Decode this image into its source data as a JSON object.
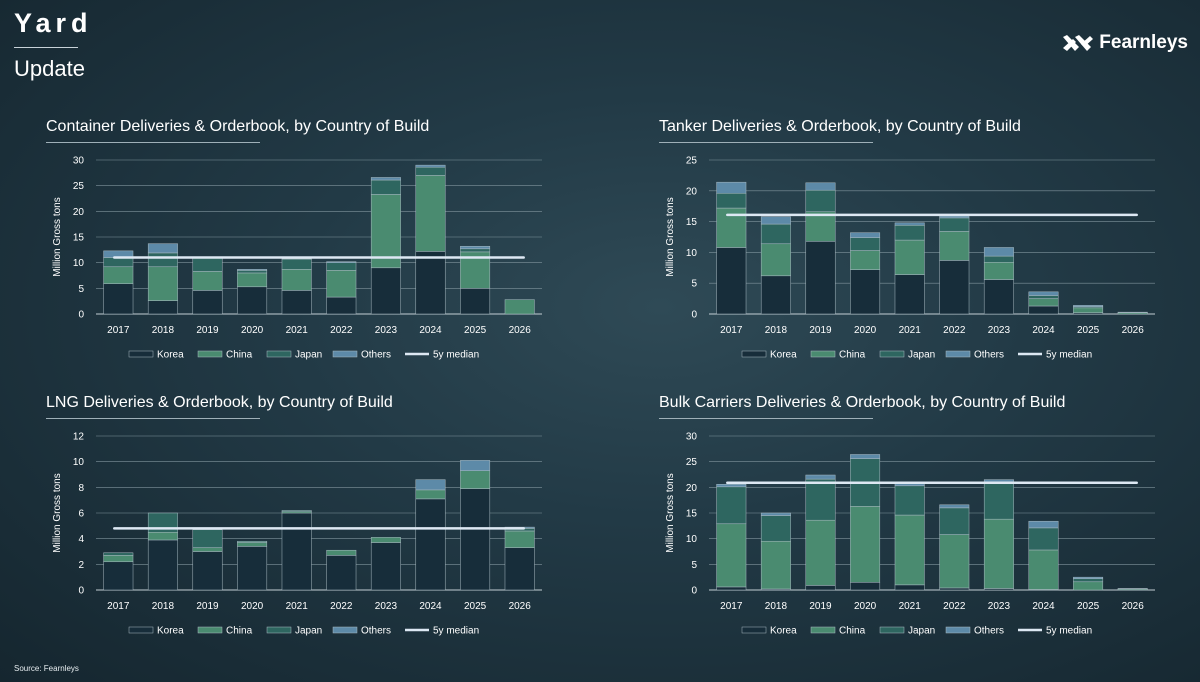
{
  "header": {
    "brand": "Yard",
    "subtitle": "Update",
    "logo_text": "Fearnleys"
  },
  "footer": {
    "source": "Source: Fearnleys"
  },
  "colors": {
    "Korea": "#172d3a",
    "China": "#4a8b70",
    "Japan": "#2e6660",
    "Others": "#5d8aa8",
    "median": "#dde8f3"
  },
  "legend": [
    "Korea",
    "China",
    "Japan",
    "Others",
    "5y median"
  ],
  "chart_data": [
    {
      "id": "container",
      "type": "bar",
      "stacked": true,
      "title": "Container Deliveries & Orderbook, by Country of Build",
      "ylabel": "Million Gross tons",
      "ylim": [
        0,
        30
      ],
      "yticks": [
        0,
        5,
        10,
        15,
        20,
        25,
        30
      ],
      "categories": [
        "2017",
        "2018",
        "2019",
        "2020",
        "2021",
        "2022",
        "2023",
        "2024",
        "2025",
        "2026"
      ],
      "series": [
        {
          "name": "Korea",
          "values": [
            5.9,
            2.6,
            4.6,
            5.3,
            4.6,
            3.3,
            9.0,
            12.2,
            5.0,
            0.0
          ]
        },
        {
          "name": "China",
          "values": [
            3.3,
            6.6,
            3.7,
            2.7,
            4.1,
            5.2,
            14.3,
            14.8,
            7.1,
            2.8
          ]
        },
        {
          "name": "Japan",
          "values": [
            1.8,
            2.7,
            2.8,
            0.5,
            2.0,
            1.5,
            2.8,
            1.6,
            0.6,
            0.0
          ]
        },
        {
          "name": "Others",
          "values": [
            1.3,
            1.8,
            0.0,
            0.2,
            0.1,
            0.2,
            0.5,
            0.4,
            0.5,
            0.0
          ]
        }
      ],
      "median": 11.0,
      "median_span": [
        "2017",
        "2026"
      ]
    },
    {
      "id": "tanker",
      "type": "bar",
      "stacked": true,
      "title": "Tanker Deliveries & Orderbook, by Country of Build",
      "ylabel": "Million Gross tons",
      "ylim": [
        0,
        25
      ],
      "yticks": [
        0,
        5,
        10,
        15,
        20,
        25
      ],
      "categories": [
        "2017",
        "2018",
        "2019",
        "2020",
        "2021",
        "2022",
        "2023",
        "2024",
        "2025",
        "2026"
      ],
      "series": [
        {
          "name": "Korea",
          "values": [
            10.8,
            6.2,
            11.8,
            7.2,
            6.4,
            8.7,
            5.6,
            1.3,
            0.2,
            0.0
          ]
        },
        {
          "name": "China",
          "values": [
            6.4,
            5.2,
            4.8,
            3.1,
            5.6,
            4.7,
            2.8,
            1.2,
            0.8,
            0.2
          ]
        },
        {
          "name": "Japan",
          "values": [
            2.4,
            3.2,
            3.5,
            2.1,
            2.4,
            2.2,
            1.0,
            0.5,
            0.2,
            0.0
          ]
        },
        {
          "name": "Others",
          "values": [
            1.8,
            1.2,
            1.2,
            0.8,
            0.4,
            0.3,
            1.4,
            0.6,
            0.2,
            0.1
          ]
        }
      ],
      "median": 16.1,
      "median_span": [
        "2017",
        "2026"
      ]
    },
    {
      "id": "lng",
      "type": "bar",
      "stacked": true,
      "title": "LNG Deliveries & Orderbook, by Country of Build",
      "ylabel": "Million Gross tons",
      "ylim": [
        0,
        12
      ],
      "yticks": [
        0,
        2,
        4,
        6,
        8,
        10,
        12
      ],
      "categories": [
        "2017",
        "2018",
        "2019",
        "2020",
        "2021",
        "2022",
        "2023",
        "2024",
        "2025",
        "2026"
      ],
      "series": [
        {
          "name": "Korea",
          "values": [
            2.2,
            3.9,
            3.0,
            3.4,
            6.0,
            2.7,
            3.7,
            7.1,
            7.9,
            3.3
          ]
        },
        {
          "name": "China",
          "values": [
            0.5,
            0.6,
            0.3,
            0.3,
            0.1,
            0.4,
            0.4,
            0.7,
            1.4,
            1.3
          ]
        },
        {
          "name": "Japan",
          "values": [
            0.2,
            1.5,
            1.4,
            0.1,
            0.1,
            0.0,
            0.0,
            0.0,
            0.0,
            0.2
          ]
        },
        {
          "name": "Others",
          "values": [
            0.0,
            0.0,
            0.0,
            0.0,
            0.0,
            0.0,
            0.0,
            0.8,
            0.8,
            0.1
          ]
        }
      ],
      "median": 4.8,
      "median_span": [
        "2017",
        "2026"
      ]
    },
    {
      "id": "bulk",
      "type": "bar",
      "stacked": true,
      "title": "Bulk Carriers Deliveries & Orderbook, by Country of Build",
      "ylabel": "Million Gross tons",
      "ylim": [
        0,
        30
      ],
      "yticks": [
        0,
        5,
        10,
        15,
        20,
        25,
        30
      ],
      "categories": [
        "2017",
        "2018",
        "2019",
        "2020",
        "2021",
        "2022",
        "2023",
        "2024",
        "2025",
        "2026"
      ],
      "series": [
        {
          "name": "Korea",
          "values": [
            0.6,
            0.2,
            0.9,
            1.5,
            1.0,
            0.4,
            0.3,
            0.1,
            0.0,
            0.0
          ]
        },
        {
          "name": "China",
          "values": [
            12.3,
            9.3,
            12.7,
            14.8,
            13.6,
            10.4,
            13.5,
            7.7,
            1.6,
            0.2
          ]
        },
        {
          "name": "Japan",
          "values": [
            7.2,
            5.0,
            8.0,
            9.3,
            5.7,
            5.2,
            6.9,
            4.3,
            0.6,
            0.0
          ]
        },
        {
          "name": "Others",
          "values": [
            0.5,
            0.5,
            0.8,
            0.8,
            0.4,
            0.6,
            0.8,
            1.3,
            0.3,
            0.1
          ]
        }
      ],
      "median": 20.9,
      "median_span": [
        "2017",
        "2026"
      ]
    }
  ]
}
